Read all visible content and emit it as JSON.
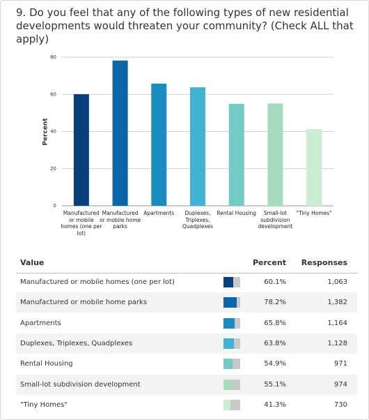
{
  "chart_data": {
    "type": "bar",
    "title": "9. Do you feel that any of the following types of new residential developments would threaten your community? (Check ALL that apply)",
    "y_label": "Percent",
    "categories": [
      "Manufactured or mobile homes (one per lot)",
      "Manufactured or mobile home parks",
      "Apartments",
      "Duplexes, Triplexes, Quadplexes",
      "Rental Housing",
      "Small-lot subdivision development",
      "\"Tiny Homes\""
    ],
    "values": [
      60.1,
      78.2,
      65.8,
      63.8,
      54.9,
      55.1,
      41.3
    ],
    "value_labels": [
      "60.1%",
      "78.2%",
      "65.8%",
      "63.8%",
      "54.9%",
      "55.1%",
      "41.3%"
    ],
    "colors": [
      "#0b3f7c",
      "#0a66a8",
      "#1a8cc0",
      "#40b2d3",
      "#73cbc6",
      "#a5dcbd",
      "#cbeed3"
    ],
    "ylim": [
      0,
      80
    ],
    "yticks": [
      0,
      20,
      40,
      60,
      80
    ],
    "grid": true
  },
  "table": {
    "columns": [
      "Value",
      "Percent",
      "Responses"
    ],
    "responses": [
      "1,063",
      "1,382",
      "1,164",
      "1,128",
      "971",
      "974",
      "730"
    ]
  }
}
